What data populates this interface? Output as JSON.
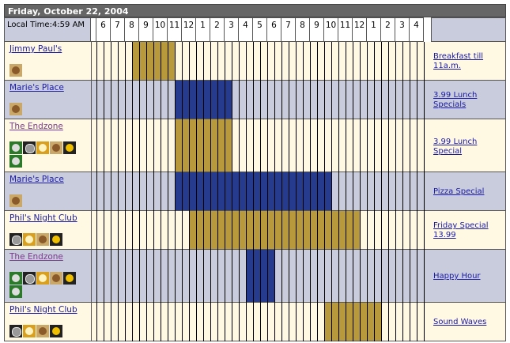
{
  "header": {
    "title": "Friday, October 22, 2004",
    "local_time": "Local Time:4:59 AM"
  },
  "hours": [
    "6",
    "7",
    "8",
    "9",
    "10",
    "11",
    "12",
    "1",
    "2",
    "3",
    "4",
    "5",
    "6",
    "7",
    "8",
    "9",
    "10",
    "11",
    "12",
    "1",
    "2",
    "3",
    "4"
  ],
  "rows": [
    {
      "name": "Jimmy Paul's",
      "special": "Breakfast till 11a.m.",
      "start": 8,
      "end": 11,
      "color": "#b89a3c"
    },
    {
      "name": "Marie's Place",
      "special": "3.99 Lunch Specials",
      "start": 11,
      "end": 15,
      "color": "#263a8e"
    },
    {
      "name": "The Endzone",
      "special": "3.99 Lunch Special",
      "start": 11,
      "end": 15,
      "color": "#b89a3c"
    },
    {
      "name": "Marie's Place",
      "special": "Pizza Special",
      "start": 11,
      "end": 22,
      "color": "#263a8e"
    },
    {
      "name": "Phil's Night Club",
      "special": "Friday Special 13.99",
      "start": 12,
      "end": 24,
      "color": "#b89a3c"
    },
    {
      "name": "The Endzone",
      "special": "Happy Hour",
      "start": 16,
      "end": 18,
      "color": "#263a8e"
    },
    {
      "name": "Phil's Night Club",
      "special": "Sound Waves",
      "start": 21.5,
      "end": 25.5,
      "color": "#b89a3c"
    }
  ]
}
